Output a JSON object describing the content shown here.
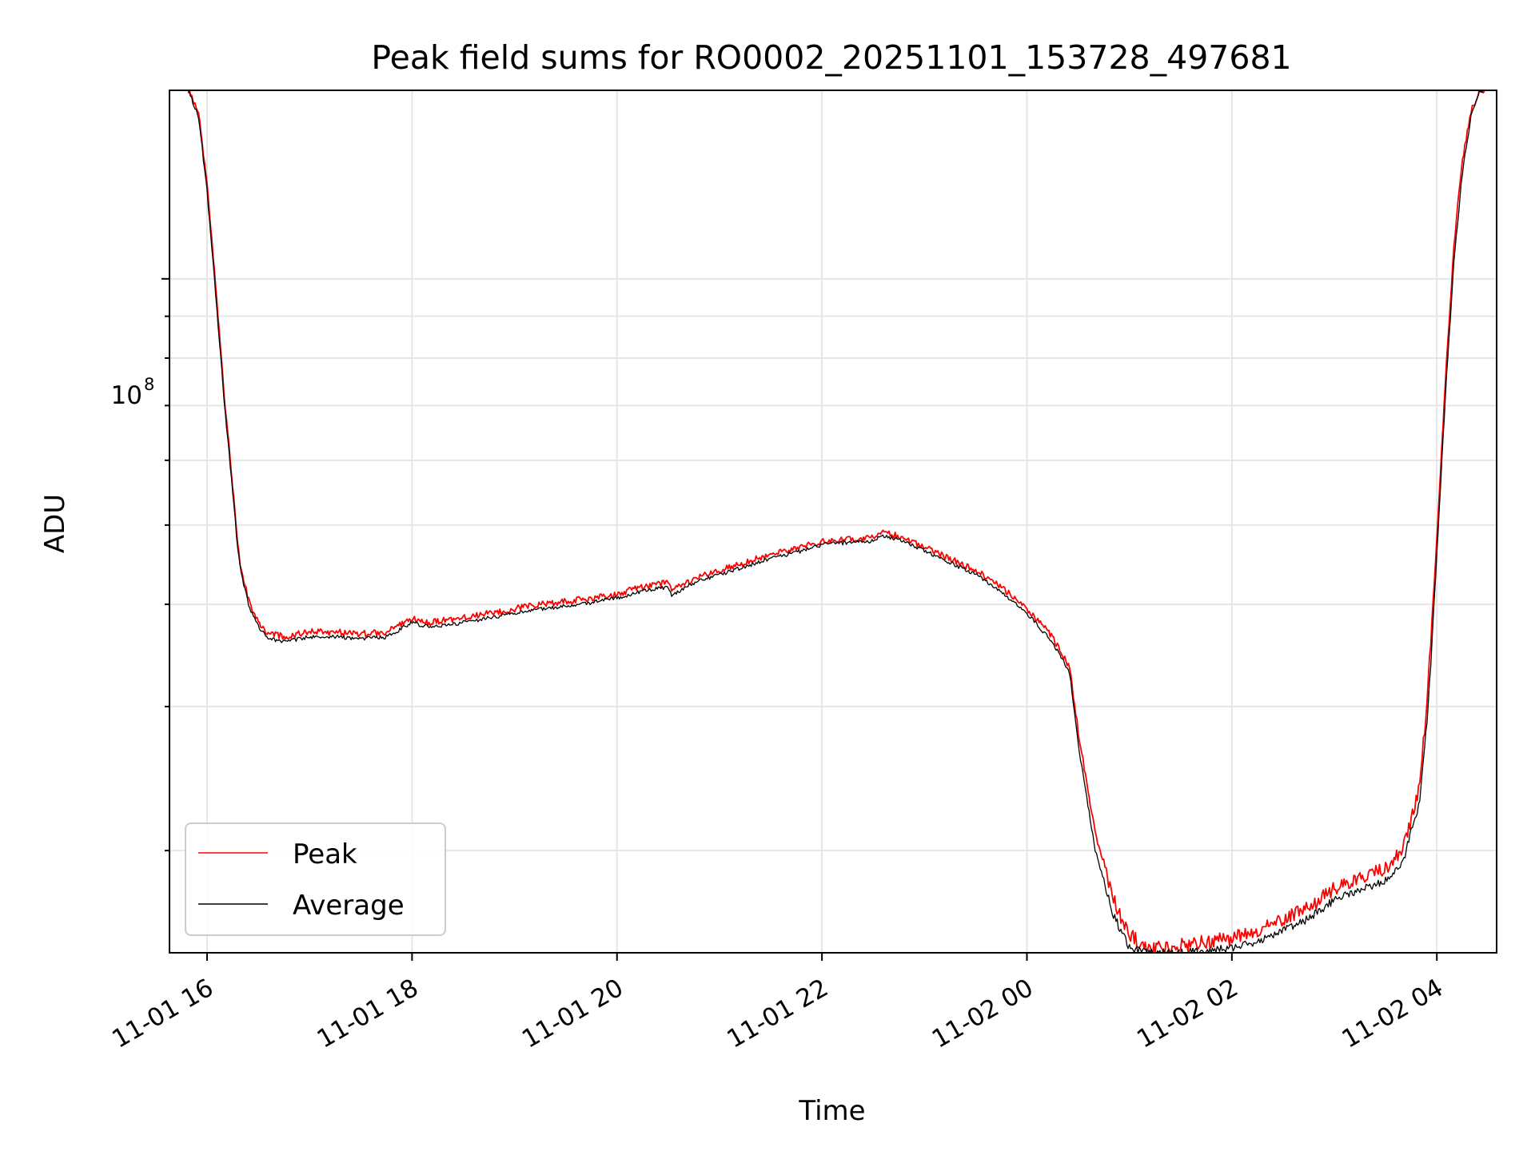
{
  "chart_data": {
    "type": "line",
    "title": "Peak field sums for RO0002_20251101_153728_497681",
    "xlabel": "Time",
    "ylabel": "ADU",
    "y_scale": "log",
    "ylim": [
      15000000,
      170000000
    ],
    "xlim": [
      "2025-11-01 15:38",
      "2025-11-02 04:35"
    ],
    "x_ticks": [
      "11-01 16",
      "11-01 18",
      "11-01 20",
      "11-01 22",
      "11-02 00",
      "11-02 02",
      "11-02 04"
    ],
    "y_tick_label": {
      "base": "10",
      "exponent": "8"
    },
    "grid": true,
    "legend": "lower-left",
    "series": [
      {
        "name": "Peak",
        "color": "#ff0000",
        "x": [
          "2025-11-01 15:49",
          "2025-11-01 15:55",
          "2025-11-01 16:00",
          "2025-11-01 16:05",
          "2025-11-01 16:10",
          "2025-11-01 16:15",
          "2025-11-01 16:18",
          "2025-11-01 16:20",
          "2025-11-01 16:25",
          "2025-11-01 16:30",
          "2025-11-01 16:35",
          "2025-11-01 16:45",
          "2025-11-01 17:00",
          "2025-11-01 17:15",
          "2025-11-01 17:30",
          "2025-11-01 17:45",
          "2025-11-01 18:00",
          "2025-11-01 18:10",
          "2025-11-01 18:30",
          "2025-11-01 18:45",
          "2025-11-01 19:00",
          "2025-11-01 19:15",
          "2025-11-01 19:30",
          "2025-11-01 19:45",
          "2025-11-01 20:00",
          "2025-11-01 20:15",
          "2025-11-01 20:30",
          "2025-11-01 20:32",
          "2025-11-01 20:45",
          "2025-11-01 21:00",
          "2025-11-01 21:15",
          "2025-11-01 21:30",
          "2025-11-01 21:45",
          "2025-11-01 22:00",
          "2025-11-01 22:15",
          "2025-11-01 22:30",
          "2025-11-01 22:35",
          "2025-11-01 22:45",
          "2025-11-01 23:00",
          "2025-11-01 23:15",
          "2025-11-01 23:30",
          "2025-11-01 23:45",
          "2025-11-02 00:00",
          "2025-11-02 00:15",
          "2025-11-02 00:25",
          "2025-11-02 00:30",
          "2025-11-02 00:40",
          "2025-11-02 00:50",
          "2025-11-02 01:00",
          "2025-11-02 01:10",
          "2025-11-02 01:20",
          "2025-11-02 01:30",
          "2025-11-02 01:45",
          "2025-11-02 02:00",
          "2025-11-02 02:15",
          "2025-11-02 02:30",
          "2025-11-02 02:45",
          "2025-11-02 03:00",
          "2025-11-02 03:15",
          "2025-11-02 03:30",
          "2025-11-02 03:40",
          "2025-11-02 03:50",
          "2025-11-02 03:55",
          "2025-11-02 04:00",
          "2025-11-02 04:05",
          "2025-11-02 04:10",
          "2025-11-02 04:15",
          "2025-11-02 04:20",
          "2025-11-02 04:25",
          "2025-11-02 04:28"
        ],
        "values": [
          170000000,
          160000000,
          130000000,
          98000000,
          72000000,
          56000000,
          47000000,
          44000000,
          40000000,
          38000000,
          37000000,
          36500000,
          37000000,
          37000000,
          36800000,
          37000000,
          38500000,
          38000000,
          38500000,
          39000000,
          39500000,
          40000000,
          40300000,
          40700000,
          41200000,
          42000000,
          42500000,
          41500000,
          43000000,
          44000000,
          45000000,
          46000000,
          46800000,
          47800000,
          48000000,
          48200000,
          49000000,
          48500000,
          47000000,
          45500000,
          44000000,
          42000000,
          39500000,
          36500000,
          33500000,
          28000000,
          21000000,
          17500000,
          15800000,
          15200000,
          15200000,
          15300000,
          15500000,
          15600000,
          16000000,
          16500000,
          17000000,
          18000000,
          18500000,
          19000000,
          20000000,
          24000000,
          32000000,
          48000000,
          75000000,
          110000000,
          140000000,
          160000000,
          170000000,
          170000000
        ]
      },
      {
        "name": "Average",
        "color": "#000000",
        "x": [
          "2025-11-01 15:49",
          "2025-11-01 15:55",
          "2025-11-01 16:00",
          "2025-11-01 16:05",
          "2025-11-01 16:10",
          "2025-11-01 16:15",
          "2025-11-01 16:18",
          "2025-11-01 16:20",
          "2025-11-01 16:25",
          "2025-11-01 16:30",
          "2025-11-01 16:35",
          "2025-11-01 16:45",
          "2025-11-01 17:00",
          "2025-11-01 17:15",
          "2025-11-01 17:30",
          "2025-11-01 17:45",
          "2025-11-01 18:00",
          "2025-11-01 18:10",
          "2025-11-01 18:30",
          "2025-11-01 18:45",
          "2025-11-01 19:00",
          "2025-11-01 19:15",
          "2025-11-01 19:30",
          "2025-11-01 19:45",
          "2025-11-01 20:00",
          "2025-11-01 20:15",
          "2025-11-01 20:30",
          "2025-11-01 20:32",
          "2025-11-01 20:45",
          "2025-11-01 21:00",
          "2025-11-01 21:15",
          "2025-11-01 21:30",
          "2025-11-01 21:45",
          "2025-11-01 22:00",
          "2025-11-01 22:15",
          "2025-11-01 22:30",
          "2025-11-01 22:35",
          "2025-11-01 22:45",
          "2025-11-01 23:00",
          "2025-11-01 23:15",
          "2025-11-01 23:30",
          "2025-11-01 23:45",
          "2025-11-02 00:00",
          "2025-11-02 00:15",
          "2025-11-02 00:25",
          "2025-11-02 00:30",
          "2025-11-02 00:40",
          "2025-11-02 00:50",
          "2025-11-02 01:00",
          "2025-11-02 01:10",
          "2025-11-02 01:20",
          "2025-11-02 01:30",
          "2025-11-02 01:45",
          "2025-11-02 02:00",
          "2025-11-02 02:15",
          "2025-11-02 02:30",
          "2025-11-02 02:45",
          "2025-11-02 03:00",
          "2025-11-02 03:15",
          "2025-11-02 03:30",
          "2025-11-02 03:40",
          "2025-11-02 03:50",
          "2025-11-02 03:55",
          "2025-11-02 04:00",
          "2025-11-02 04:05",
          "2025-11-02 04:10",
          "2025-11-02 04:15",
          "2025-11-02 04:20",
          "2025-11-02 04:25",
          "2025-11-02 04:28"
        ],
        "values": [
          170000000,
          158000000,
          128000000,
          96000000,
          71000000,
          55000000,
          46500000,
          43500000,
          39500000,
          37600000,
          36400000,
          36000000,
          36500000,
          36500000,
          36300000,
          36500000,
          38000000,
          37500000,
          38000000,
          38500000,
          39000000,
          39500000,
          39800000,
          40200000,
          40700000,
          41500000,
          42000000,
          41000000,
          42500000,
          43500000,
          44500000,
          45500000,
          46300000,
          47300000,
          47600000,
          47800000,
          48500000,
          48000000,
          46500000,
          45000000,
          43500000,
          41500000,
          39000000,
          36000000,
          33000000,
          27000000,
          20000000,
          16800000,
          15200000,
          15000000,
          15000000,
          15000000,
          15100000,
          15200000,
          15500000,
          16000000,
          16500000,
          17400000,
          17900000,
          18400000,
          19300000,
          23000000,
          30000000,
          46000000,
          72000000,
          105000000,
          135000000,
          158000000,
          170000000,
          170000000
        ]
      }
    ]
  }
}
